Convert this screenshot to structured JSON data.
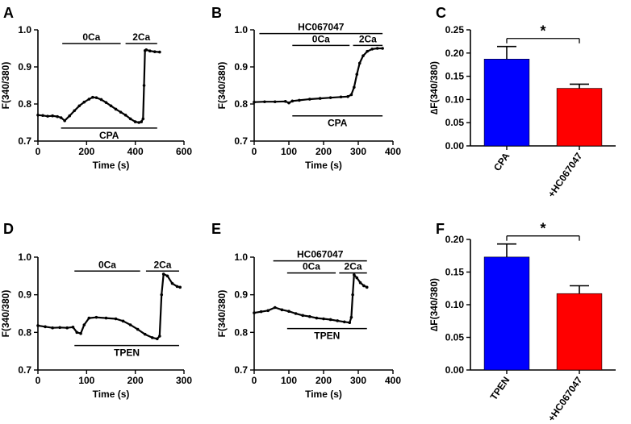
{
  "panels": [
    {
      "letter": "A",
      "kind": "trace",
      "xlabel": "Time (s)",
      "ylabel": "F(340/380)",
      "xlim": [
        0,
        600
      ],
      "ylim": [
        0.7,
        1.0
      ],
      "xticks": [
        0,
        200,
        400,
        600
      ],
      "xtick_labels": [
        "0",
        "200",
        "400",
        "600"
      ],
      "yticks": [
        0.7,
        0.8,
        0.9,
        1.0
      ],
      "ytick_labels": [
        "0.7",
        "0.8",
        "0.9",
        "1.0"
      ],
      "bars": [
        {
          "label": "0Ca",
          "x0": 100,
          "x1": 340,
          "y": 0.963,
          "label_pos": "above"
        },
        {
          "label": "2Ca",
          "x0": 360,
          "x1": 490,
          "y": 0.963,
          "label_pos": "above"
        },
        {
          "label": "CPA",
          "x0": 95,
          "x1": 490,
          "y": 0.735,
          "label_pos": "below"
        }
      ],
      "trace": [
        [
          0,
          0.77
        ],
        [
          20,
          0.769
        ],
        [
          40,
          0.767
        ],
        [
          60,
          0.768
        ],
        [
          80,
          0.766
        ],
        [
          95,
          0.763
        ],
        [
          110,
          0.755
        ],
        [
          130,
          0.768
        ],
        [
          150,
          0.782
        ],
        [
          170,
          0.795
        ],
        [
          190,
          0.805
        ],
        [
          210,
          0.813
        ],
        [
          225,
          0.818
        ],
        [
          240,
          0.817
        ],
        [
          260,
          0.812
        ],
        [
          280,
          0.804
        ],
        [
          300,
          0.795
        ],
        [
          320,
          0.786
        ],
        [
          340,
          0.778
        ],
        [
          360,
          0.77
        ],
        [
          380,
          0.76
        ],
        [
          400,
          0.752
        ],
        [
          415,
          0.75
        ],
        [
          425,
          0.752
        ],
        [
          432,
          0.76
        ],
        [
          436,
          0.85
        ],
        [
          440,
          0.944
        ],
        [
          445,
          0.946
        ],
        [
          460,
          0.943
        ],
        [
          480,
          0.941
        ],
        [
          500,
          0.94
        ]
      ]
    },
    {
      "letter": "B",
      "kind": "trace",
      "xlabel": "Time (s)",
      "ylabel": "F(340/380)",
      "xlim": [
        0,
        400
      ],
      "ylim": [
        0.7,
        1.0
      ],
      "xticks": [
        0,
        100,
        200,
        300,
        400
      ],
      "xtick_labels": [
        "0",
        "100",
        "200",
        "300",
        "400"
      ],
      "yticks": [
        0.7,
        0.8,
        0.9,
        1.0
      ],
      "ytick_labels": [
        "0.7",
        "0.8",
        "0.9",
        "1.0"
      ],
      "bars": [
        {
          "label": "HC067047",
          "x0": 15,
          "x1": 370,
          "y": 0.99,
          "label_pos": "above"
        },
        {
          "label": "0Ca",
          "x0": 110,
          "x1": 275,
          "y": 0.958,
          "label_pos": "above"
        },
        {
          "label": "2Ca",
          "x0": 285,
          "x1": 370,
          "y": 0.958,
          "label_pos": "above"
        },
        {
          "label": "CPA",
          "x0": 110,
          "x1": 370,
          "y": 0.768,
          "label_pos": "below"
        }
      ],
      "trace": [
        [
          0,
          0.805
        ],
        [
          30,
          0.806
        ],
        [
          60,
          0.806
        ],
        [
          90,
          0.807
        ],
        [
          100,
          0.803
        ],
        [
          110,
          0.808
        ],
        [
          130,
          0.81
        ],
        [
          160,
          0.813
        ],
        [
          190,
          0.815
        ],
        [
          220,
          0.817
        ],
        [
          250,
          0.819
        ],
        [
          270,
          0.82
        ],
        [
          280,
          0.825
        ],
        [
          288,
          0.845
        ],
        [
          296,
          0.88
        ],
        [
          304,
          0.91
        ],
        [
          314,
          0.93
        ],
        [
          326,
          0.942
        ],
        [
          340,
          0.948
        ],
        [
          355,
          0.95
        ],
        [
          370,
          0.95
        ]
      ]
    },
    {
      "letter": "C",
      "kind": "bar",
      "ylabel": "∆F(340/380)",
      "ylim": [
        0,
        0.25
      ],
      "yticks": [
        0,
        0.05,
        0.1,
        0.15,
        0.2,
        0.25
      ],
      "ytick_labels": [
        "0.00",
        "0.05",
        "0.10",
        "0.15",
        "0.20",
        "0.25"
      ],
      "categories": [
        "CPA",
        "+HC067047"
      ],
      "values": [
        0.187,
        0.124
      ],
      "errors": [
        0.027,
        0.009
      ],
      "colors": [
        "#0000ff",
        "#ff0000"
      ],
      "significance": "*"
    },
    {
      "letter": "D",
      "kind": "trace",
      "xlabel": "Time (s)",
      "ylabel": "F(340/380)",
      "xlim": [
        0,
        300
      ],
      "ylim": [
        0.7,
        1.0
      ],
      "xticks": [
        0,
        100,
        200,
        300
      ],
      "xtick_labels": [
        "0",
        "100",
        "200",
        "300"
      ],
      "yticks": [
        0.7,
        0.8,
        0.9,
        1.0
      ],
      "ytick_labels": [
        "0.7",
        "0.8",
        "0.9",
        "1.0"
      ],
      "bars": [
        {
          "label": "0Ca",
          "x0": 75,
          "x1": 210,
          "y": 0.963,
          "label_pos": "above"
        },
        {
          "label": "2Ca",
          "x0": 222,
          "x1": 290,
          "y": 0.963,
          "label_pos": "above"
        },
        {
          "label": "TPEN",
          "x0": 75,
          "x1": 290,
          "y": 0.765,
          "label_pos": "below"
        }
      ],
      "trace": [
        [
          0,
          0.818
        ],
        [
          15,
          0.815
        ],
        [
          30,
          0.812
        ],
        [
          45,
          0.813
        ],
        [
          60,
          0.812
        ],
        [
          72,
          0.814
        ],
        [
          80,
          0.8
        ],
        [
          88,
          0.797
        ],
        [
          95,
          0.82
        ],
        [
          105,
          0.838
        ],
        [
          120,
          0.84
        ],
        [
          140,
          0.838
        ],
        [
          160,
          0.836
        ],
        [
          175,
          0.83
        ],
        [
          190,
          0.82
        ],
        [
          205,
          0.808
        ],
        [
          220,
          0.795
        ],
        [
          235,
          0.786
        ],
        [
          245,
          0.783
        ],
        [
          250,
          0.79
        ],
        [
          254,
          0.9
        ],
        [
          258,
          0.955
        ],
        [
          266,
          0.95
        ],
        [
          276,
          0.93
        ],
        [
          286,
          0.922
        ],
        [
          292,
          0.92
        ]
      ]
    },
    {
      "letter": "E",
      "kind": "trace",
      "xlabel": "Time (s)",
      "ylabel": "F(340/380)",
      "xlim": [
        0,
        400
      ],
      "ylim": [
        0.7,
        1.0
      ],
      "xticks": [
        0,
        100,
        200,
        300,
        400
      ],
      "xtick_labels": [
        "0",
        "100",
        "200",
        "300",
        "400"
      ],
      "yticks": [
        0.7,
        0.8,
        0.9,
        1.0
      ],
      "ytick_labels": [
        "0.7",
        "0.8",
        "0.9",
        "1.0"
      ],
      "bars": [
        {
          "label": "HC067047",
          "x0": 55,
          "x1": 325,
          "y": 0.99,
          "label_pos": "above"
        },
        {
          "label": "0Ca",
          "x0": 95,
          "x1": 235,
          "y": 0.958,
          "label_pos": "above"
        },
        {
          "label": "2Ca",
          "x0": 245,
          "x1": 325,
          "y": 0.958,
          "label_pos": "above"
        },
        {
          "label": "TPEN",
          "x0": 95,
          "x1": 325,
          "y": 0.81,
          "label_pos": "below"
        }
      ],
      "trace": [
        [
          0,
          0.852
        ],
        [
          20,
          0.855
        ],
        [
          40,
          0.858
        ],
        [
          60,
          0.866
        ],
        [
          80,
          0.86
        ],
        [
          100,
          0.856
        ],
        [
          120,
          0.85
        ],
        [
          140,
          0.845
        ],
        [
          160,
          0.842
        ],
        [
          180,
          0.838
        ],
        [
          200,
          0.836
        ],
        [
          220,
          0.834
        ],
        [
          240,
          0.831
        ],
        [
          260,
          0.828
        ],
        [
          275,
          0.826
        ],
        [
          280,
          0.84
        ],
        [
          284,
          0.9
        ],
        [
          288,
          0.953
        ],
        [
          296,
          0.945
        ],
        [
          306,
          0.932
        ],
        [
          316,
          0.924
        ],
        [
          325,
          0.92
        ]
      ]
    },
    {
      "letter": "F",
      "kind": "bar",
      "ylabel": "∆F(340/380)",
      "ylim": [
        0,
        0.2
      ],
      "yticks": [
        0,
        0.05,
        0.1,
        0.15,
        0.2
      ],
      "ytick_labels": [
        "0.00",
        "0.05",
        "0.10",
        "0.15",
        "0.20"
      ],
      "categories": [
        "TPEN",
        "+HC067047"
      ],
      "values": [
        0.173,
        0.117
      ],
      "errors": [
        0.02,
        0.012
      ],
      "colors": [
        "#0000ff",
        "#ff0000"
      ],
      "significance": "*"
    }
  ]
}
